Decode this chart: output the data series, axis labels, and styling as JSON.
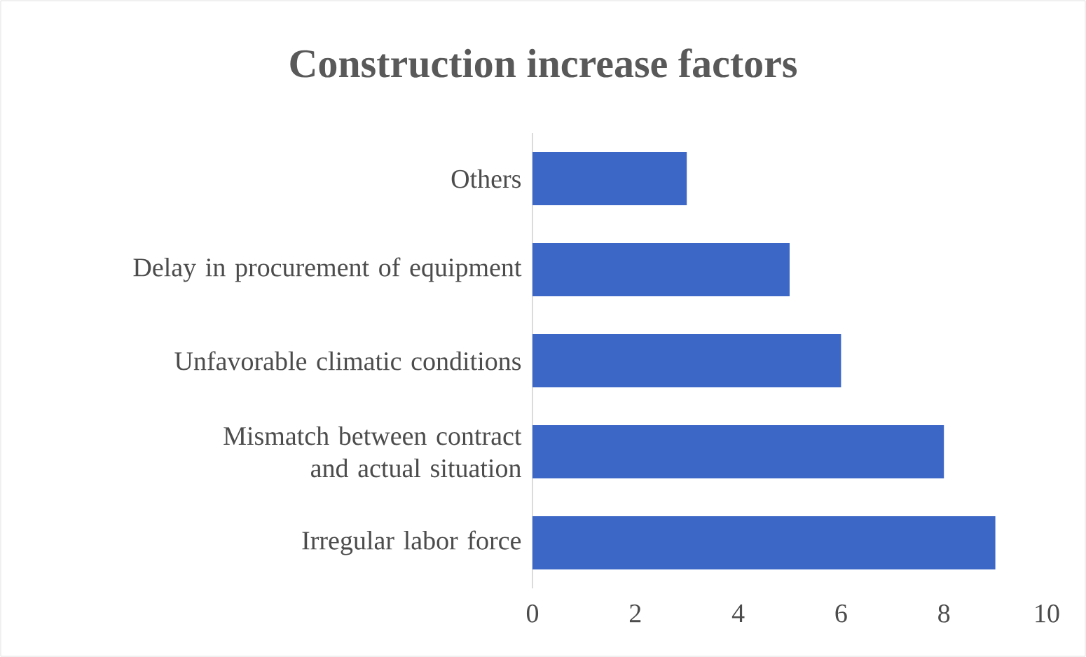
{
  "chart_data": {
    "type": "bar",
    "orientation": "horizontal",
    "title": "Construction increase factors",
    "categories": [
      "Others",
      "Delay in procurement of equipment",
      "Unfavorable climatic conditions",
      "Mismatch between contract and actual situation",
      "Irregular labor force"
    ],
    "values": [
      3,
      5,
      6,
      8,
      9
    ],
    "color": "#3d67c6",
    "xlim": [
      0,
      10
    ],
    "xticks": [
      0,
      2,
      4,
      6,
      8,
      10
    ],
    "grid": false
  }
}
